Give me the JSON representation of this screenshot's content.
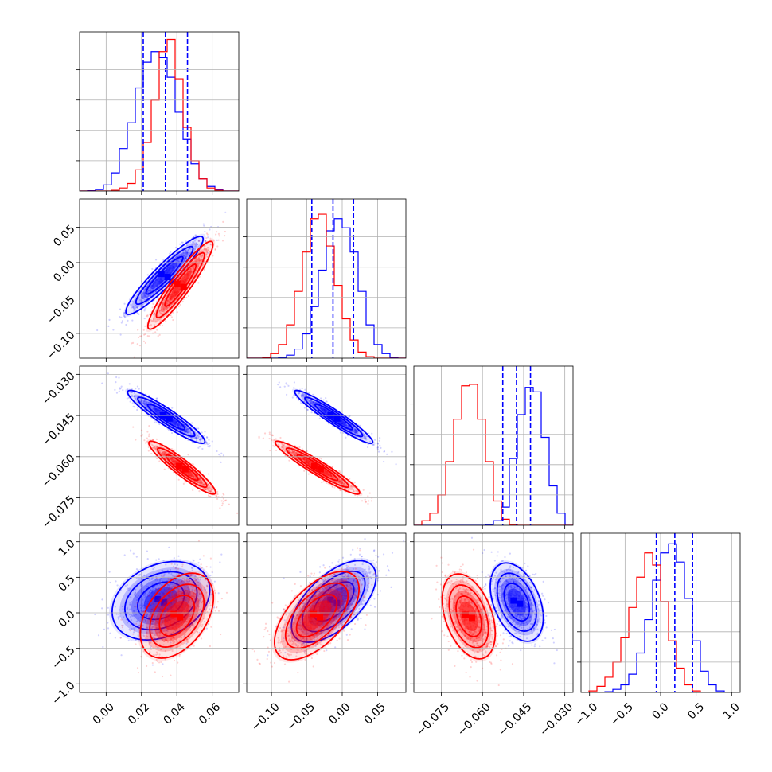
{
  "chart_data": {
    "type": "corner",
    "grid": true,
    "legend": "none",
    "series": [
      {
        "name": "",
        "color": "#0000ff"
      },
      {
        "name": "",
        "color": "#ff0000"
      }
    ],
    "parameters": [
      {
        "label": "",
        "range": [
          -0.015,
          0.075
        ],
        "ticks": [
          0.0,
          0.02,
          0.04,
          0.06
        ],
        "tick_labels": [
          "0.00",
          "0.02",
          "0.04",
          "0.06"
        ]
      },
      {
        "label": "",
        "range": [
          -0.135,
          0.09
        ],
        "ticks": [
          -0.1,
          -0.05,
          0.0,
          0.05
        ],
        "tick_labels": [
          "−0.10",
          "−0.05",
          "0.00",
          "0.05"
        ]
      },
      {
        "label": "",
        "range": [
          -0.085,
          -0.027
        ],
        "ticks": [
          -0.075,
          -0.06,
          -0.045,
          -0.03
        ],
        "tick_labels": [
          "−0.075",
          "−0.060",
          "−0.045",
          "−0.030"
        ]
      },
      {
        "label": "",
        "range": [
          -1.12,
          1.12
        ],
        "ticks": [
          -1.0,
          -0.5,
          0.0,
          0.5,
          1.0
        ],
        "tick_labels": [
          "−1.0",
          "−0.5",
          "0.0",
          "0.5",
          "1.0"
        ]
      }
    ],
    "histograms": [
      {
        "param": 0,
        "bin_edges": [
          -0.015,
          -0.0105,
          -0.006,
          -0.0015,
          0.003,
          0.0075,
          0.012,
          0.0165,
          0.021,
          0.0255,
          0.03,
          0.0345,
          0.039,
          0.0435,
          0.048,
          0.0525,
          0.057,
          0.0615,
          0.066,
          0.0705,
          0.075
        ],
        "counts": {
          "blue": [
            0.0,
            0.002,
            0.01,
            0.04,
            0.12,
            0.28,
            0.45,
            0.68,
            0.85,
            0.92,
            0.88,
            0.75,
            0.52,
            0.34,
            0.18,
            0.08,
            0.03,
            0.01,
            0.0,
            0.0
          ],
          "red": [
            0.0,
            0.0,
            0.0,
            0.0,
            0.005,
            0.02,
            0.05,
            0.14,
            0.32,
            0.6,
            0.92,
            1.0,
            0.74,
            0.42,
            0.2,
            0.08,
            0.02,
            0.005,
            0.0,
            0.0
          ]
        },
        "quantiles": [
          0.021,
          0.0335,
          0.046
        ]
      },
      {
        "param": 1,
        "bin_edges": [
          -0.135,
          -0.12375,
          -0.1125,
          -0.10125,
          -0.09,
          -0.07875,
          -0.0675,
          -0.05625,
          -0.045,
          -0.03375,
          -0.0225,
          -0.01125,
          0.0,
          0.01125,
          0.0225,
          0.03375,
          0.045,
          0.05625,
          0.0675,
          0.07875,
          0.09
        ],
        "counts": {
          "blue": [
            0.0,
            0.0,
            0.0,
            0.0,
            0.005,
            0.02,
            0.06,
            0.16,
            0.34,
            0.58,
            0.84,
            0.92,
            0.86,
            0.7,
            0.44,
            0.22,
            0.09,
            0.03,
            0.005,
            0.0
          ],
          "red": [
            0.0,
            0.0,
            0.005,
            0.03,
            0.09,
            0.22,
            0.44,
            0.7,
            0.92,
            0.95,
            0.74,
            0.48,
            0.26,
            0.12,
            0.04,
            0.01,
            0.0,
            0.0,
            0.0,
            0.0
          ]
        },
        "quantiles": [
          -0.043,
          -0.013,
          0.016
        ]
      },
      {
        "param": 2,
        "bin_edges": [
          -0.085,
          -0.0821,
          -0.0792,
          -0.0763,
          -0.0734,
          -0.0705,
          -0.0676,
          -0.0647,
          -0.0618,
          -0.0589,
          -0.056,
          -0.0531,
          -0.0502,
          -0.0473,
          -0.0444,
          -0.0415,
          -0.0386,
          -0.0357,
          -0.0328,
          -0.0299,
          -0.027
        ],
        "counts": {
          "blue": [
            0.0,
            0.0,
            0.0,
            0.0,
            0.0,
            0.0,
            0.0,
            0.0,
            0.0,
            0.005,
            0.03,
            0.12,
            0.44,
            0.73,
            0.91,
            0.88,
            0.58,
            0.26,
            0.08,
            0.0
          ],
          "red": [
            0.0,
            0.03,
            0.08,
            0.2,
            0.42,
            0.7,
            0.92,
            0.93,
            0.7,
            0.42,
            0.16,
            0.04,
            0.005,
            0.0,
            0.0,
            0.0,
            0.0,
            0.0,
            0.0,
            0.0
          ]
        },
        "quantiles": [
          -0.0526,
          -0.0476,
          -0.0425
        ]
      },
      {
        "param": 3,
        "bin_edges": [
          -1.12,
          -1.008,
          -0.896,
          -0.784,
          -0.672,
          -0.56,
          -0.448,
          -0.336,
          -0.224,
          -0.112,
          0.0,
          0.112,
          0.224,
          0.336,
          0.448,
          0.56,
          0.672,
          0.784,
          0.896,
          1.008,
          1.12
        ],
        "counts": {
          "blue": [
            0.0,
            0.0,
            0.0,
            0.005,
            0.02,
            0.05,
            0.12,
            0.26,
            0.48,
            0.74,
            0.92,
            0.98,
            0.86,
            0.62,
            0.34,
            0.14,
            0.05,
            0.01,
            0.0,
            0.0
          ],
          "red": [
            0.0,
            0.01,
            0.04,
            0.1,
            0.2,
            0.36,
            0.56,
            0.76,
            0.92,
            0.84,
            0.6,
            0.34,
            0.16,
            0.05,
            0.01,
            0.0,
            0.0,
            0.0,
            0.0,
            0.0
          ]
        },
        "quantiles": [
          -0.06,
          0.2,
          0.45
        ]
      }
    ],
    "joint": [
      {
        "px": 0,
        "py": 1,
        "blue": {
          "mean": [
            0.033,
            -0.018
          ],
          "sd": [
            0.0095,
            0.024
          ],
          "corr": 0.93
        },
        "red": {
          "mean": [
            0.042,
            -0.032
          ],
          "sd": [
            0.008,
            0.027
          ],
          "corr": 0.93
        }
      },
      {
        "px": 0,
        "py": 2,
        "blue": {
          "mean": [
            0.034,
            -0.0455
          ],
          "sd": [
            0.0095,
            0.0042
          ],
          "corr": -0.93
        },
        "red": {
          "mean": [
            0.043,
            -0.064
          ],
          "sd": [
            0.0082,
            0.0042
          ],
          "corr": -0.93
        }
      },
      {
        "px": 1,
        "py": 2,
        "blue": {
          "mean": [
            -0.012,
            -0.0455
          ],
          "sd": [
            0.024,
            0.0042
          ],
          "corr": -0.95
        },
        "red": {
          "mean": [
            -0.035,
            -0.064
          ],
          "sd": [
            0.026,
            0.0042
          ],
          "corr": -0.95
        }
      },
      {
        "px": 0,
        "py": 3,
        "blue": {
          "mean": [
            0.031,
            0.17
          ],
          "sd": [
            0.012,
            0.24
          ],
          "corr": 0.28
        },
        "red": {
          "mean": [
            0.04,
            -0.04
          ],
          "sd": [
            0.009,
            0.26
          ],
          "corr": 0.42
        }
      },
      {
        "px": 1,
        "py": 3,
        "blue": {
          "mean": [
            -0.012,
            0.16
          ],
          "sd": [
            0.026,
            0.25
          ],
          "corr": 0.6
        },
        "red": {
          "mean": [
            -0.036,
            -0.04
          ],
          "sd": [
            0.026,
            0.27
          ],
          "corr": 0.6
        }
      },
      {
        "px": 2,
        "py": 3,
        "blue": {
          "mean": [
            -0.0475,
            0.15
          ],
          "sd": [
            0.0042,
            0.24
          ],
          "corr": -0.4
        },
        "red": {
          "mean": [
            -0.065,
            -0.05
          ],
          "sd": [
            0.0042,
            0.26
          ],
          "corr": -0.4
        }
      }
    ]
  }
}
